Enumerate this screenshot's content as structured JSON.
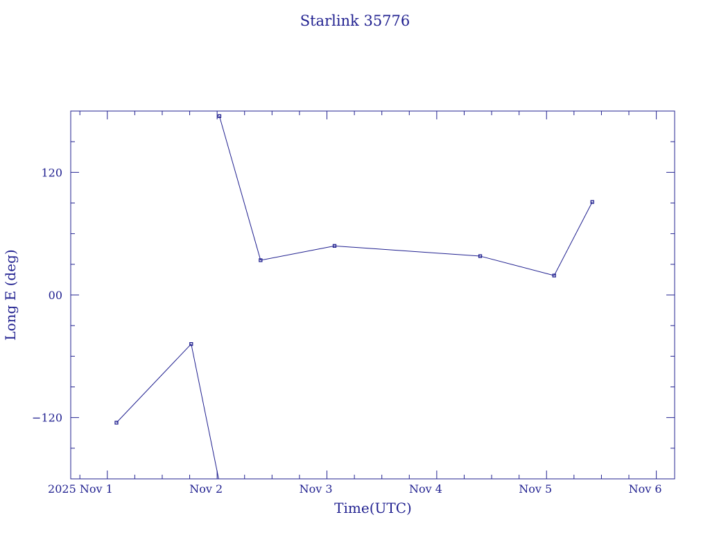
{
  "chart_data": {
    "type": "line",
    "title": "Starlink 35776",
    "xlabel": "Time(UTC)",
    "ylabel": "Long E (deg)",
    "xlim": [
      "2025-10-31T16:00",
      "2025-11-06T04:00"
    ],
    "ylim": [
      -180,
      180
    ],
    "x_tick_labels": [
      "2025 Nov  1",
      "Nov  2",
      "Nov  3",
      "Nov  4",
      "Nov  5",
      "Nov  6"
    ],
    "x_ticks": [
      "2025-11-01T00:00",
      "2025-11-02T00:00",
      "2025-11-03T00:00",
      "2025-11-04T00:00",
      "2025-11-05T00:00",
      "2025-11-06T00:00"
    ],
    "y_ticks": [
      -120,
      0,
      120
    ],
    "y_tick_labels": [
      "−120",
      "00",
      "120"
    ],
    "grid": false,
    "color": "#1f1f8f",
    "series": [
      {
        "values": [
          {
            "x": "2025-11-01T02:00",
            "y": -125
          },
          {
            "x": "2025-11-01T18:20",
            "y": -48
          },
          {
            "x": "2025-11-02T00:20",
            "y": -180,
            "break_after": true
          },
          {
            "x": "2025-11-02T00:30",
            "y": 175
          },
          {
            "x": "2025-11-02T09:30",
            "y": 34
          },
          {
            "x": "2025-11-03T01:40",
            "y": 48
          },
          {
            "x": "2025-11-04T09:30",
            "y": 38
          },
          {
            "x": "2025-11-05T01:40",
            "y": 19
          },
          {
            "x": "2025-11-05T10:00",
            "y": 91
          }
        ]
      }
    ]
  }
}
